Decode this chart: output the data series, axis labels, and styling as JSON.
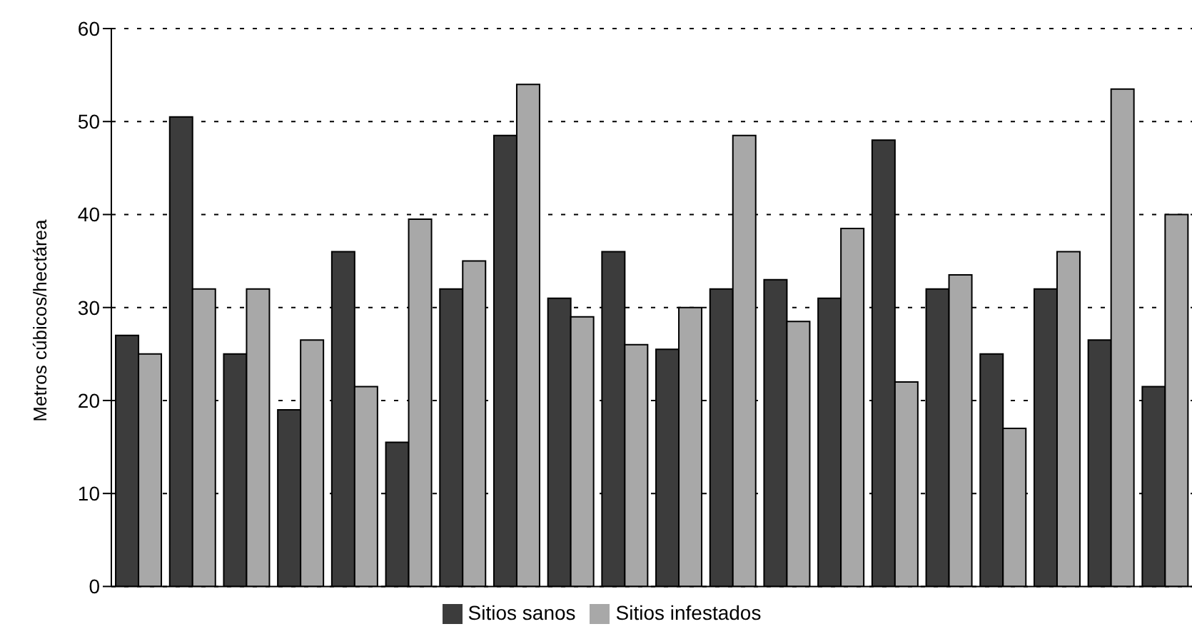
{
  "chart_data": {
    "type": "bar",
    "ylabel": "Metros cúbicos/hectárea",
    "categories": [
      null,
      null,
      null,
      null,
      null,
      null,
      null,
      null,
      null,
      null,
      null,
      null,
      null,
      null,
      null,
      null,
      null,
      null,
      null,
      null
    ],
    "series": [
      {
        "name": "Sitios sanos",
        "color": "#3c3c3c",
        "values": [
          27,
          50.5,
          25,
          19,
          36,
          15.5,
          32,
          48.5,
          31,
          36,
          25.5,
          32,
          33,
          31,
          48,
          32,
          25,
          32,
          26.5,
          21.5
        ]
      },
      {
        "name": "Sitios infestados",
        "color": "#a8a8a8",
        "values": [
          25,
          32,
          32,
          26.5,
          21.5,
          39.5,
          35,
          54,
          29,
          26,
          30,
          48.5,
          28.5,
          38.5,
          22,
          33.5,
          17,
          36,
          53.5,
          40
        ]
      }
    ],
    "ylim": [
      0,
      60
    ],
    "yticks": [
      0,
      10,
      20,
      30,
      40,
      50,
      60
    ],
    "grid": "y",
    "legend": "bottom"
  }
}
